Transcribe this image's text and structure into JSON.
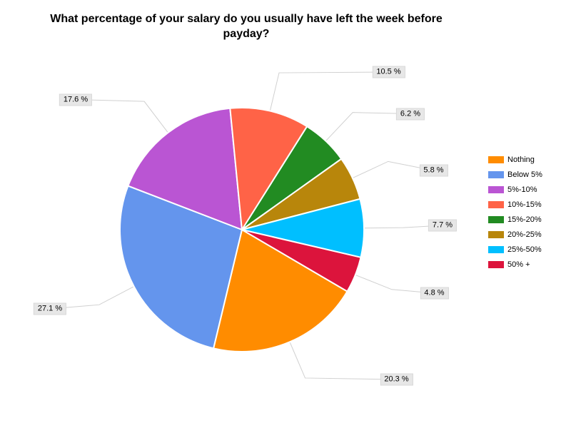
{
  "title": "What percentage of your salary do you usually have left the week before\npayday?",
  "chart_data": {
    "type": "pie",
    "title": "What percentage of your salary do you usually have left the week before payday?",
    "legend_position": "right",
    "start_angle_deg": 120.4,
    "direction": "clockwise",
    "slices": [
      {
        "label": "Nothing",
        "value": 20.3,
        "value_label": "20.3 %",
        "color": "#FF8C00"
      },
      {
        "label": "Below 5%",
        "value": 27.1,
        "value_label": "27.1 %",
        "color": "#6495ED"
      },
      {
        "label": "5%-10%",
        "value": 17.6,
        "value_label": "17.6 %",
        "color": "#BA55D3"
      },
      {
        "label": "10%-15%",
        "value": 10.5,
        "value_label": "10.5 %",
        "color": "#FF6347"
      },
      {
        "label": "15%-20%",
        "value": 6.2,
        "value_label": "6.2 %",
        "color": "#228B22"
      },
      {
        "label": "20%-25%",
        "value": 5.8,
        "value_label": "5.8 %",
        "color": "#B8860B"
      },
      {
        "label": "25%-50%",
        "value": 7.7,
        "value_label": "7.7 %",
        "color": "#00BFFF"
      },
      {
        "label": "50% +",
        "value": 4.8,
        "value_label": "4.8 %",
        "color": "#DC143C"
      }
    ]
  }
}
